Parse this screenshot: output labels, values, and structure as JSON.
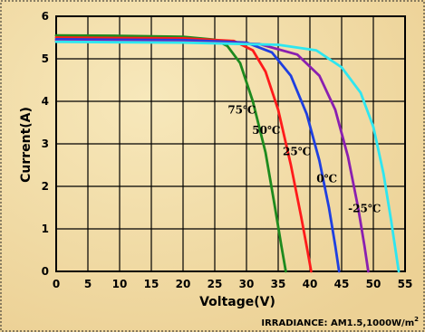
{
  "colors": {
    "background": "#f2dfa8",
    "background_accent": "#e9c57f",
    "grid": "#000000",
    "axis": "#000000"
  },
  "note": {
    "text": "IRRADIANCE: AM1.5,1000W/m",
    "superscript": "2"
  },
  "chart_data": {
    "type": "line",
    "title": "",
    "xlabel": "Voltage(V)",
    "ylabel": "Current(A)",
    "xlim": [
      0,
      55
    ],
    "ylim": [
      0,
      6
    ],
    "xticks": [
      "0",
      "5",
      "10",
      "15",
      "20",
      "25",
      "30",
      "35",
      "40",
      "45",
      "50",
      "55"
    ],
    "yticks": [
      "0",
      "1",
      "2",
      "3",
      "4",
      "5",
      "6"
    ],
    "grid": true,
    "legend": "none",
    "series": [
      {
        "name": "75℃",
        "color": "#1e8a1e",
        "points": [
          [
            0,
            5.55
          ],
          [
            10,
            5.54
          ],
          [
            20,
            5.52
          ],
          [
            25,
            5.45
          ],
          [
            27,
            5.3
          ],
          [
            29,
            4.9
          ],
          [
            31,
            4.0
          ],
          [
            33,
            2.8
          ],
          [
            34.5,
            1.5
          ],
          [
            35.5,
            0.6
          ],
          [
            36.2,
            0
          ]
        ]
      },
      {
        "name": "50℃",
        "color": "#ff1a1a",
        "points": [
          [
            0,
            5.5
          ],
          [
            10,
            5.49
          ],
          [
            20,
            5.48
          ],
          [
            28,
            5.42
          ],
          [
            31,
            5.2
          ],
          [
            33,
            4.7
          ],
          [
            35,
            3.8
          ],
          [
            37,
            2.5
          ],
          [
            38.6,
            1.3
          ],
          [
            39.6,
            0.5
          ],
          [
            40.2,
            0
          ]
        ]
      },
      {
        "name": "25℃",
        "color": "#1f3fe0",
        "points": [
          [
            0,
            5.46
          ],
          [
            10,
            5.45
          ],
          [
            20,
            5.44
          ],
          [
            30,
            5.38
          ],
          [
            34,
            5.15
          ],
          [
            37,
            4.6
          ],
          [
            39.5,
            3.7
          ],
          [
            41.5,
            2.6
          ],
          [
            43,
            1.5
          ],
          [
            44,
            0.6
          ],
          [
            44.6,
            0
          ]
        ]
      },
      {
        "name": "0℃",
        "color": "#8a1fb0",
        "points": [
          [
            0,
            5.42
          ],
          [
            10,
            5.41
          ],
          [
            20,
            5.4
          ],
          [
            32,
            5.35
          ],
          [
            38,
            5.1
          ],
          [
            41.5,
            4.6
          ],
          [
            44,
            3.8
          ],
          [
            46,
            2.7
          ],
          [
            47.6,
            1.5
          ],
          [
            48.6,
            0.6
          ],
          [
            49.2,
            0
          ]
        ]
      },
      {
        "name": "-25℃",
        "color": "#2ee6f0",
        "points": [
          [
            0,
            5.4
          ],
          [
            10,
            5.39
          ],
          [
            20,
            5.38
          ],
          [
            35,
            5.33
          ],
          [
            41,
            5.2
          ],
          [
            45,
            4.8
          ],
          [
            48,
            4.2
          ],
          [
            50,
            3.4
          ],
          [
            51.6,
            2.3
          ],
          [
            52.8,
            1.2
          ],
          [
            53.6,
            0.4
          ],
          [
            54,
            0
          ]
        ]
      }
    ],
    "annotations": [
      {
        "text": "75℃",
        "series": "75℃"
      },
      {
        "text": "50℃",
        "series": "50℃"
      },
      {
        "text": "25℃",
        "series": "25℃"
      },
      {
        "text": "0℃",
        "series": "0℃"
      },
      {
        "text": "-25℃",
        "series": "-25℃"
      }
    ]
  }
}
